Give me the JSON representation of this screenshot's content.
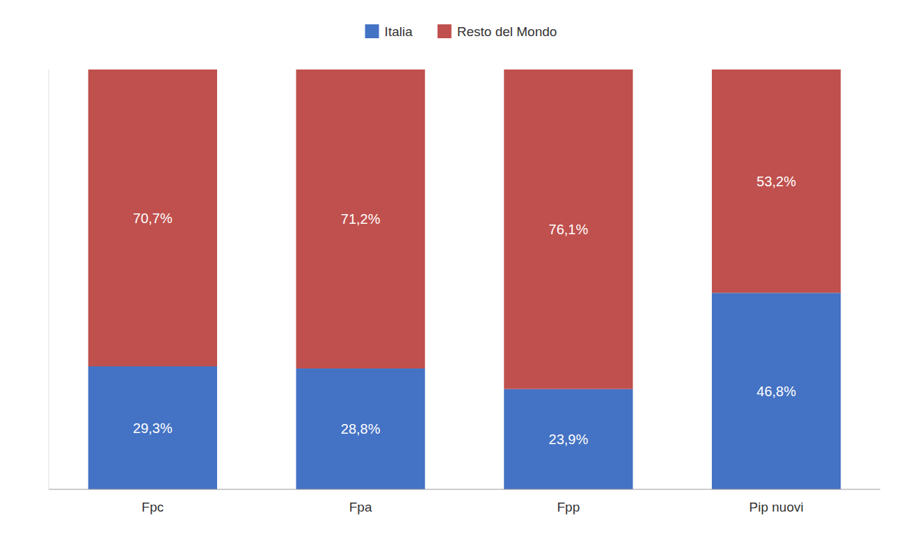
{
  "chart_data": {
    "type": "bar",
    "stacked": true,
    "data_labels": true,
    "legend": "top",
    "tick_labels": "x",
    "categories": [
      "Fpc",
      "Fpa",
      "Fpp",
      "Pip nuovi"
    ],
    "ylim": [
      0,
      100
    ],
    "series": [
      {
        "name": "Italia",
        "color": "#4472C4",
        "values": [
          29.3,
          28.8,
          23.9,
          46.8
        ],
        "value_labels": [
          "29,3%",
          "28,8%",
          "23,9%",
          "46,8%"
        ]
      },
      {
        "name": "Resto del Mondo",
        "color": "#C0504D",
        "values": [
          70.7,
          71.2,
          76.1,
          53.2
        ],
        "value_labels": [
          "70,7%",
          "71,2%",
          "76,1%",
          "53,2%"
        ]
      }
    ]
  }
}
